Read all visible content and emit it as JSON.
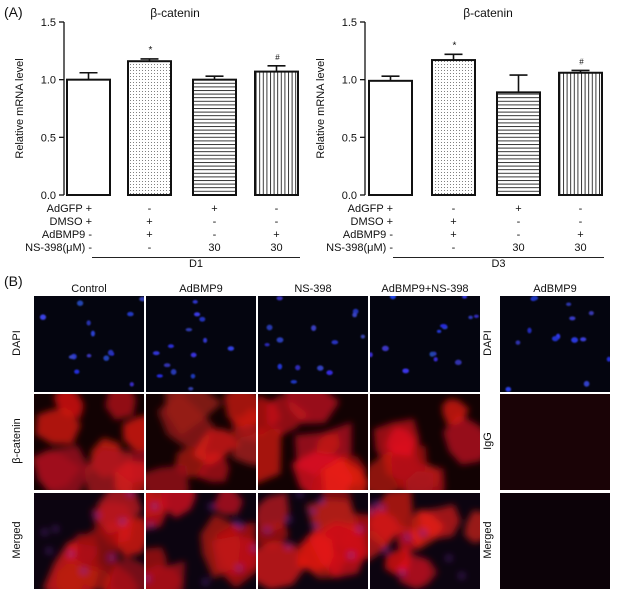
{
  "panel_a_label": "(A)",
  "panel_b_label": "(B)",
  "chart_data": [
    {
      "type": "bar",
      "title": "β-catenin",
      "ylabel": "Relative mRNA level",
      "ylim": [
        0.0,
        1.5
      ],
      "yticks": [
        "0.0",
        "0.5",
        "1.0",
        "1.5"
      ],
      "categories": [
        "AdGFP+DMSO",
        "AdBMP9+DMSO",
        "AdGFP+NS-398",
        "AdBMP9+NS-398"
      ],
      "values": [
        1.0,
        1.16,
        1.0,
        1.07
      ],
      "errors": [
        0.06,
        0.02,
        0.03,
        0.05
      ],
      "annotations": [
        "",
        "*",
        "",
        "#"
      ],
      "day": "D1"
    },
    {
      "type": "bar",
      "title": "β-catenin",
      "ylabel": "Relative mRNA level",
      "ylim": [
        0.0,
        1.5
      ],
      "yticks": [
        "0.0",
        "0.5",
        "1.0",
        "1.5"
      ],
      "categories": [
        "AdGFP+DMSO",
        "AdBMP9+DMSO",
        "AdGFP+NS-398",
        "AdBMP9+NS-398"
      ],
      "values": [
        0.99,
        1.17,
        0.89,
        1.06
      ],
      "errors": [
        0.04,
        0.05,
        0.15,
        0.02
      ],
      "annotations": [
        "",
        "*",
        "",
        "#"
      ],
      "day": "D3"
    }
  ],
  "conditions": [
    {
      "label": "AdGFP +",
      "values": [
        "",
        "-",
        "+",
        "-"
      ]
    },
    {
      "label": "DMSO +",
      "values": [
        "",
        "+",
        "-",
        "-"
      ]
    },
    {
      "label": "AdBMP9 -",
      "values": [
        "",
        "+",
        "-",
        "+"
      ]
    },
    {
      "label": "NS-398(μM) -",
      "values": [
        "",
        "-",
        "30",
        "30"
      ]
    }
  ],
  "micrograph": {
    "column_headers": [
      "Control",
      "AdBMP9",
      "NS-398",
      "AdBMP9+NS-398"
    ],
    "side_header": "AdBMP9",
    "row_labels": [
      "DAPI",
      "β-catenin",
      "Merged"
    ],
    "side_row_labels": [
      "DAPI",
      "IgG",
      "Merged"
    ]
  }
}
